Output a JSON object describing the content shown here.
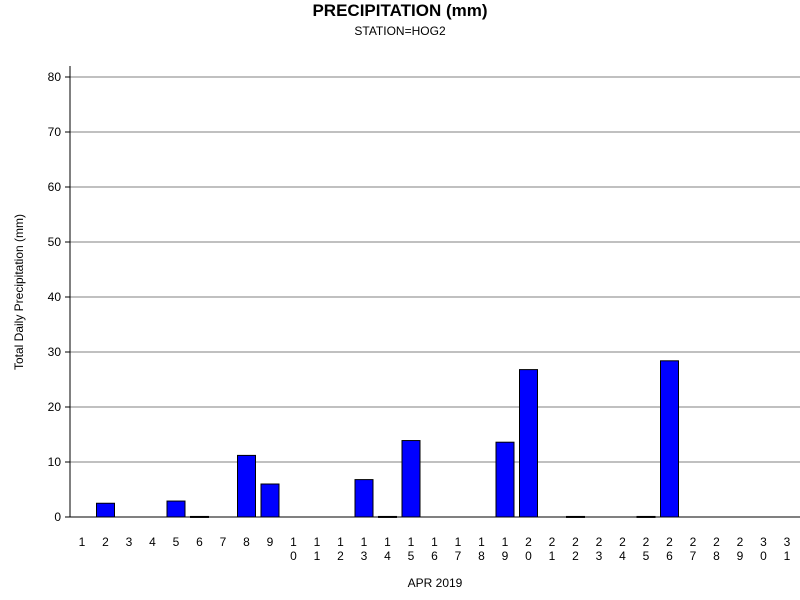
{
  "chart_data": {
    "type": "bar",
    "title": "PRECIPITATION (mm)",
    "subtitle": "STATION=HOG2",
    "xlabel": "APR 2019",
    "ylabel": "Total Daily Precipitation (mm)",
    "ylim": [
      0,
      80
    ],
    "yticks": [
      0,
      10,
      20,
      30,
      40,
      50,
      60,
      70,
      80
    ],
    "grid": true,
    "categories": [
      "1",
      "2",
      "3",
      "4",
      "5",
      "6",
      "7",
      "8",
      "9",
      "10",
      "11",
      "12",
      "13",
      "14",
      "15",
      "16",
      "17",
      "18",
      "19",
      "20",
      "21",
      "22",
      "23",
      "24",
      "25",
      "26",
      "27",
      "28",
      "29",
      "30",
      "31"
    ],
    "values": [
      0,
      2.5,
      0,
      0,
      2.9,
      0.1,
      0,
      11.2,
      6.0,
      0,
      0,
      0,
      6.8,
      0.1,
      13.9,
      0,
      0,
      0,
      13.6,
      26.8,
      0,
      0.1,
      0,
      0,
      0.1,
      28.4,
      0,
      0,
      0,
      0,
      0
    ],
    "bar_color": "#0000ff"
  }
}
